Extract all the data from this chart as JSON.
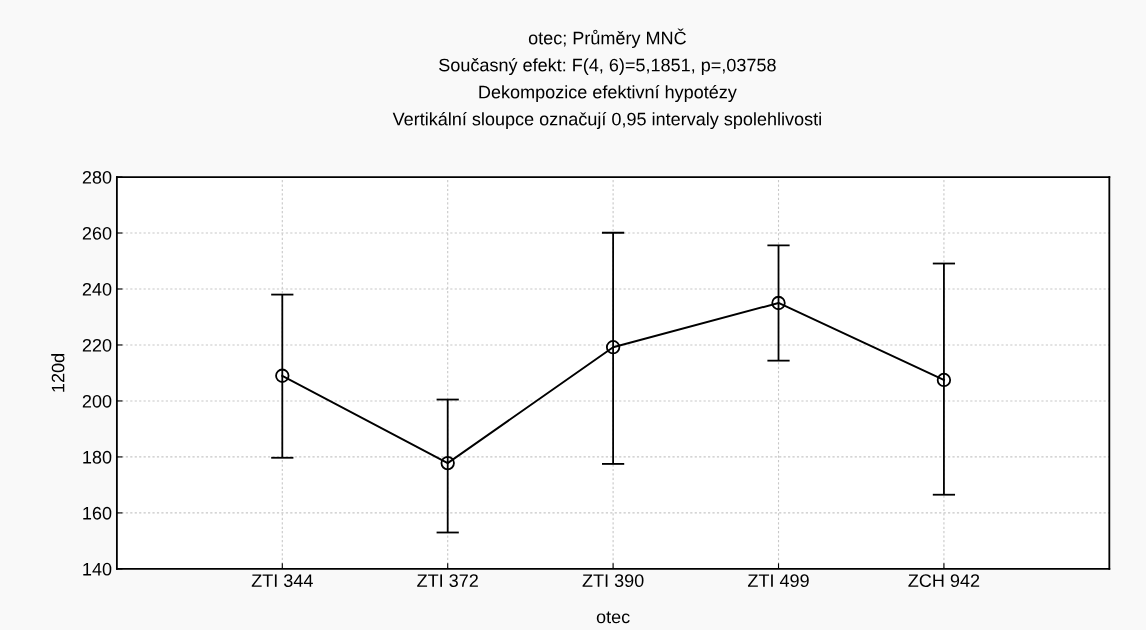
{
  "chart_data": {
    "type": "line",
    "title": "otec; Průměry MNČ\nSoučasný efekt: F(4, 6)=5,1851, p=,03758\nDekompozice efektivní hypotézy\nVertikální sloupce označují 0,95 intervaly spolehlivosti",
    "xlabel": "otec",
    "ylabel": "120d",
    "categories": [
      "ZTI 344",
      "ZTI 372",
      "ZTI 390",
      "ZTI 499",
      "ZCH 942"
    ],
    "series": [
      {
        "color": "#000000",
        "values": [
          209.0,
          177.8,
          219.2,
          235.0,
          207.5
        ],
        "errors": [
          [
            179.7,
            238.0
          ],
          [
            153.0,
            200.5
          ],
          [
            177.5,
            260.1
          ],
          [
            214.4,
            255.6
          ],
          [
            166.5,
            249.1
          ]
        ]
      }
    ],
    "ylim": [
      140,
      280
    ],
    "yticks": [
      140,
      160,
      180,
      200,
      220,
      240,
      260,
      280
    ],
    "grid": true,
    "marker": "circle",
    "line_style": "solid"
  }
}
